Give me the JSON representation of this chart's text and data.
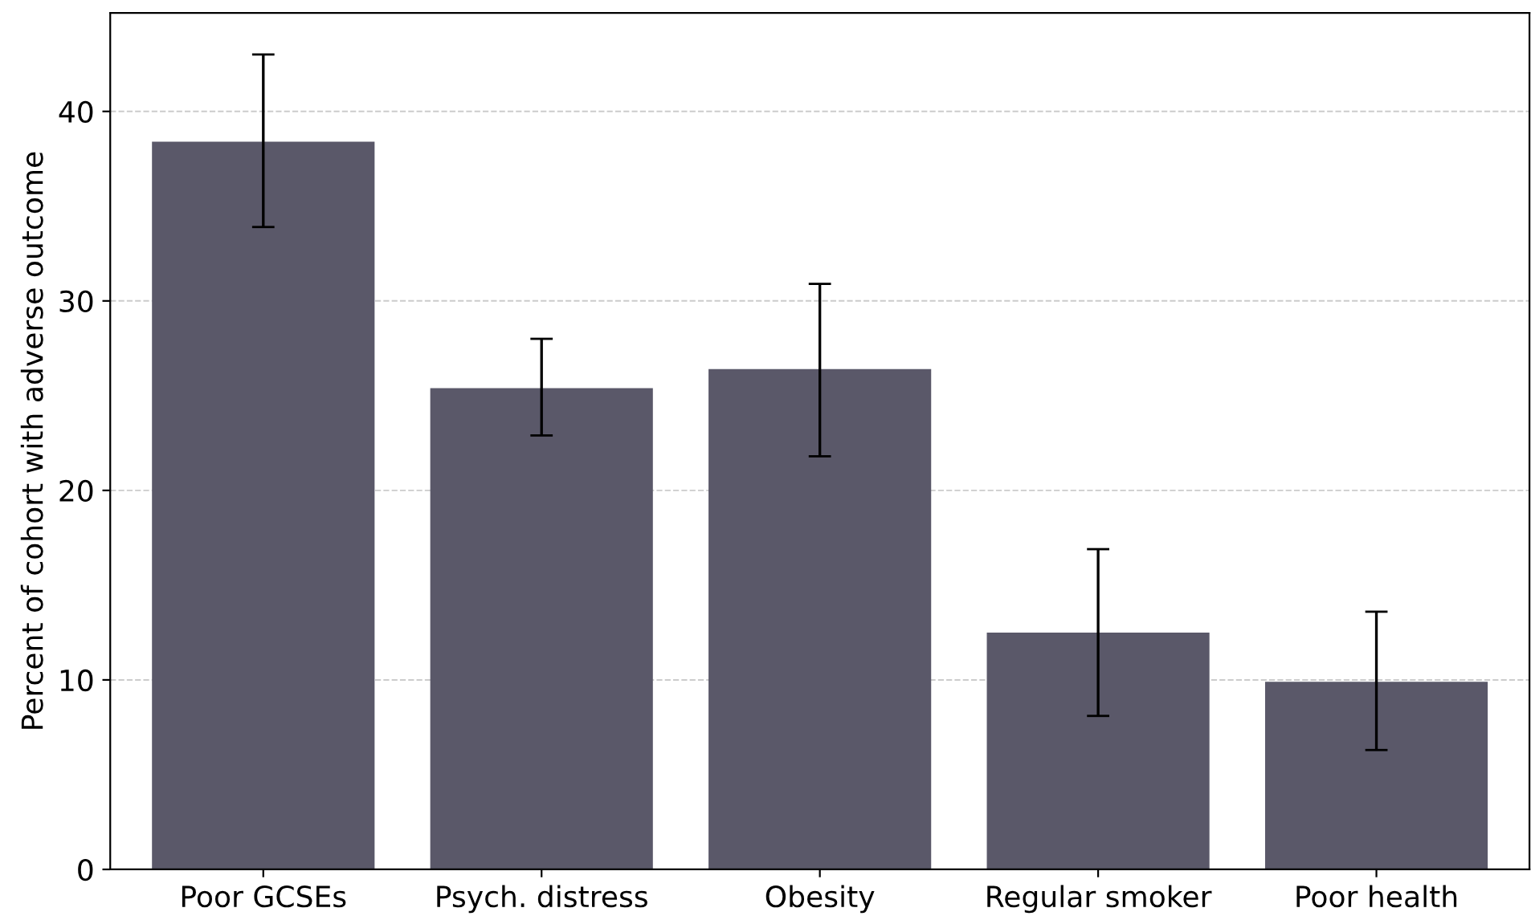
{
  "chart_data": {
    "type": "bar",
    "ylabel": "Percent of cohort with adverse outcome",
    "categories": [
      "Poor GCSEs",
      "Psych. distress",
      "Obesity",
      "Regular smoker",
      "Poor health"
    ],
    "values": [
      38.4,
      25.4,
      26.4,
      12.5,
      9.9
    ],
    "errors": [
      [
        33.9,
        43.0
      ],
      [
        22.9,
        28.0
      ],
      [
        21.8,
        30.9
      ],
      [
        8.1,
        16.9
      ],
      [
        6.3,
        13.6
      ]
    ],
    "color": "#5a5869",
    "ylim": [
      0,
      45.2
    ],
    "yticks": [
      0,
      10,
      20,
      30,
      40
    ],
    "grid": "y"
  }
}
